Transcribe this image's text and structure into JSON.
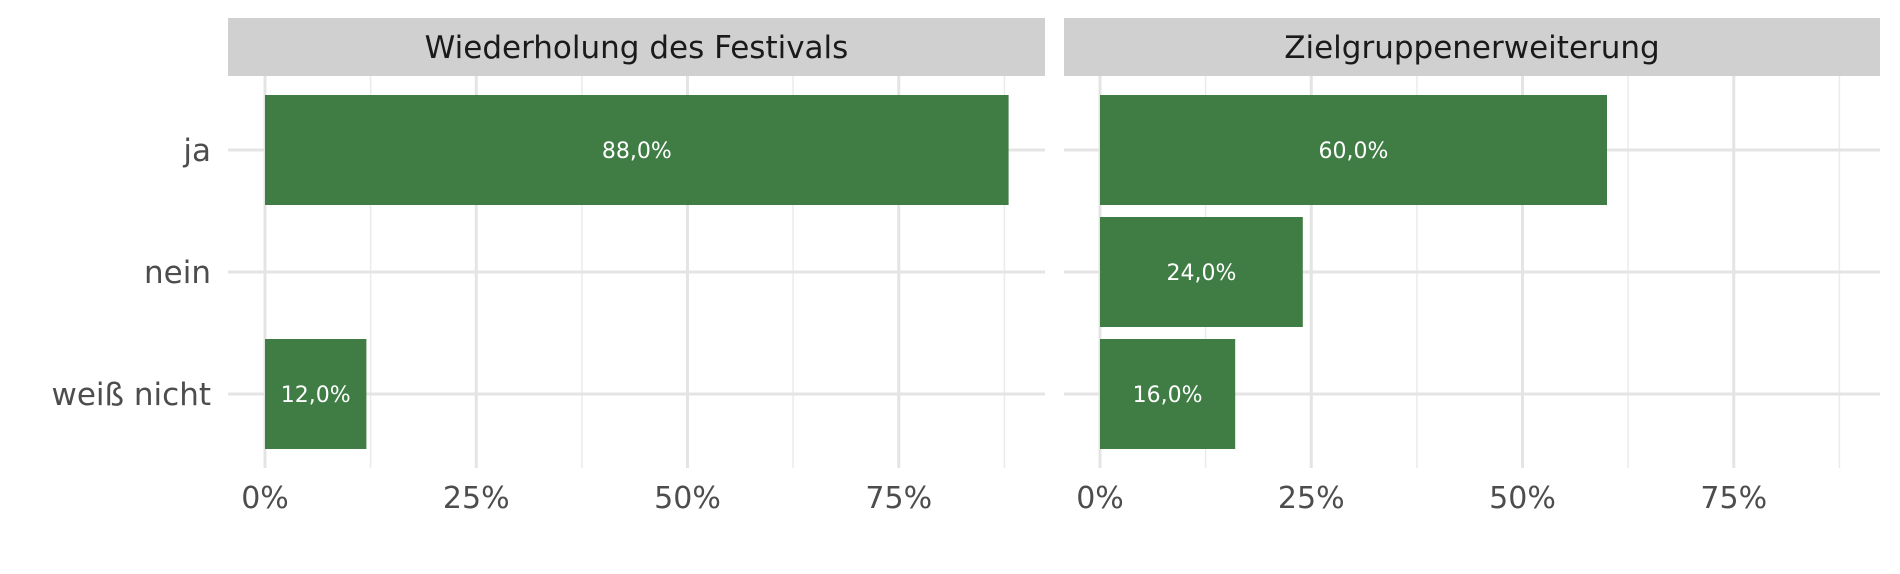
{
  "chart_data": {
    "type": "bar",
    "orientation": "horizontal",
    "categories": [
      "ja",
      "nein",
      "weiß nicht"
    ],
    "x_tick_labels": [
      "0%",
      "25%",
      "50%",
      "75%"
    ],
    "xlim": [
      0,
      0.92
    ],
    "grid": true,
    "bar_color": "#3f7d45",
    "strip_color": "#d0d0d0",
    "label_color": "#ffffff",
    "panels": [
      {
        "title": "Wiederholung des Festivals",
        "values": [
          0.88,
          0.0,
          0.12
        ],
        "labels": [
          "88,0%",
          "",
          "12,0%"
        ]
      },
      {
        "title": "Zielgruppenerweiterung",
        "values": [
          0.6,
          0.24,
          0.16
        ],
        "labels": [
          "60,0%",
          "24,0%",
          "16,0%"
        ]
      }
    ]
  }
}
